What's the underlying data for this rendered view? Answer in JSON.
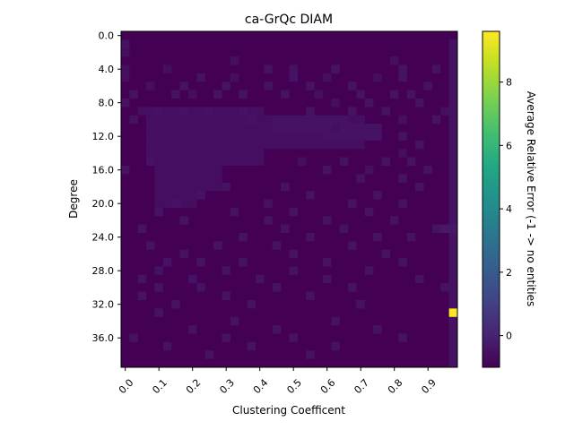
{
  "chart_data": {
    "type": "heatmap",
    "title": "ca-GrQc DIAM",
    "xlabel": "Clustering Coefficent",
    "ylabel": "Degree",
    "x_ticks": [
      "0.0",
      "0.1",
      "0.2",
      "0.3",
      "0.4",
      "0.5",
      "0.6",
      "0.7",
      "0.8",
      "0.9"
    ],
    "y_ticks": [
      "0.0",
      "4.0",
      "8.0",
      "12.0",
      "16.0",
      "20.0",
      "24.0",
      "28.0",
      "32.0",
      "36.0"
    ],
    "colorbar": {
      "label": "Average Relative Error (-1 -> no entities",
      "ticks": [
        "0",
        "2",
        "4",
        "6",
        "8"
      ],
      "range": [
        -1,
        9.6
      ],
      "colormap": "viridis"
    },
    "grid": {
      "rows": 40,
      "cols": 40,
      "row_start": 0,
      "row_step": 1,
      "col_start": 0.0,
      "col_step": 0.025
    },
    "default_value": -1,
    "cells": [
      [
        1,
        0,
        -0.5
      ],
      [
        1,
        39,
        -0.5
      ],
      [
        2,
        0,
        -0.6
      ],
      [
        2,
        39,
        -0.5
      ],
      [
        3,
        39,
        -0.5
      ],
      [
        3,
        32,
        -0.6
      ],
      [
        3,
        13,
        -0.6
      ],
      [
        4,
        0,
        -0.6
      ],
      [
        4,
        5,
        -0.6
      ],
      [
        4,
        17,
        -0.5
      ],
      [
        4,
        20,
        -0.5
      ],
      [
        4,
        25,
        -0.5
      ],
      [
        4,
        33,
        -0.5
      ],
      [
        4,
        37,
        -0.5
      ],
      [
        4,
        39,
        -0.5
      ],
      [
        5,
        0,
        -0.6
      ],
      [
        5,
        9,
        -0.5
      ],
      [
        5,
        13,
        -0.6
      ],
      [
        5,
        20,
        -0.5
      ],
      [
        5,
        24,
        -0.6
      ],
      [
        5,
        30,
        -0.6
      ],
      [
        5,
        33,
        -0.5
      ],
      [
        5,
        39,
        -0.5
      ],
      [
        6,
        3,
        -0.6
      ],
      [
        6,
        7,
        -0.5
      ],
      [
        6,
        12,
        -0.5
      ],
      [
        6,
        17,
        -0.5
      ],
      [
        6,
        22,
        -0.5
      ],
      [
        6,
        27,
        -0.5
      ],
      [
        6,
        36,
        -0.5
      ],
      [
        6,
        39,
        -0.5
      ],
      [
        7,
        1,
        -0.5
      ],
      [
        7,
        6,
        -0.5
      ],
      [
        7,
        8,
        -0.6
      ],
      [
        7,
        11,
        -0.5
      ],
      [
        7,
        14,
        -0.5
      ],
      [
        7,
        19,
        -0.5
      ],
      [
        7,
        23,
        -0.6
      ],
      [
        7,
        28,
        -0.5
      ],
      [
        7,
        32,
        -0.5
      ],
      [
        7,
        34,
        -0.5
      ],
      [
        7,
        39,
        -0.5
      ],
      [
        8,
        0,
        -0.5
      ],
      [
        8,
        25,
        -0.6
      ],
      [
        8,
        29,
        -0.5
      ],
      [
        8,
        35,
        -0.5
      ],
      [
        8,
        39,
        -0.5
      ],
      [
        9,
        2,
        -0.6
      ],
      [
        9,
        4,
        -0.5
      ],
      [
        9,
        7,
        -0.5
      ],
      [
        9,
        10,
        -0.5
      ],
      [
        9,
        14,
        -0.5
      ],
      [
        9,
        22,
        -0.5
      ],
      [
        9,
        27,
        -0.5
      ],
      [
        9,
        31,
        -0.5
      ],
      [
        9,
        38,
        -0.6
      ],
      [
        9,
        39,
        -0.5
      ],
      [
        10,
        1,
        -0.5
      ],
      [
        10,
        15,
        -0.5
      ],
      [
        10,
        21,
        -0.5
      ],
      [
        10,
        24,
        -0.5
      ],
      [
        10,
        28,
        -0.6
      ],
      [
        10,
        33,
        -0.6
      ],
      [
        10,
        37,
        -0.5
      ],
      [
        10,
        39,
        -0.5
      ],
      [
        11,
        25,
        -0.6
      ],
      [
        11,
        29,
        -0.5
      ],
      [
        11,
        39,
        -0.5
      ],
      [
        12,
        33,
        -0.5
      ],
      [
        12,
        39,
        -0.5
      ],
      [
        13,
        35,
        -0.5
      ],
      [
        13,
        39,
        -0.5
      ],
      [
        14,
        33,
        -0.6
      ],
      [
        14,
        39,
        -0.5
      ],
      [
        15,
        3,
        -0.5
      ],
      [
        15,
        21,
        -0.6
      ],
      [
        15,
        26,
        -0.5
      ],
      [
        15,
        31,
        -0.5
      ],
      [
        15,
        34,
        -0.5
      ],
      [
        15,
        39,
        -0.5
      ],
      [
        16,
        0,
        -0.5
      ],
      [
        16,
        24,
        -0.5
      ],
      [
        16,
        29,
        -0.6
      ],
      [
        16,
        36,
        -0.5
      ],
      [
        16,
        39,
        -0.5
      ],
      [
        17,
        28,
        -0.5
      ],
      [
        17,
        33,
        -0.5
      ],
      [
        17,
        39,
        -0.5
      ],
      [
        18,
        12,
        -0.5
      ],
      [
        18,
        19,
        -0.5
      ],
      [
        18,
        35,
        -0.5
      ],
      [
        18,
        39,
        -0.5
      ],
      [
        19,
        9,
        -0.5
      ],
      [
        19,
        22,
        -0.5
      ],
      [
        19,
        30,
        -0.5
      ],
      [
        19,
        39,
        -0.5
      ],
      [
        20,
        6,
        -0.5
      ],
      [
        20,
        17,
        -0.5
      ],
      [
        20,
        27,
        -0.5
      ],
      [
        20,
        33,
        -0.5
      ],
      [
        20,
        39,
        -0.5
      ],
      [
        21,
        4,
        -0.5
      ],
      [
        21,
        13,
        -0.5
      ],
      [
        21,
        20,
        -0.5
      ],
      [
        21,
        29,
        -0.5
      ],
      [
        21,
        39,
        -0.5
      ],
      [
        22,
        7,
        -0.5
      ],
      [
        22,
        17,
        -0.5
      ],
      [
        22,
        24,
        -0.5
      ],
      [
        22,
        32,
        -0.5
      ],
      [
        22,
        39,
        -0.5
      ],
      [
        23,
        2,
        -0.5
      ],
      [
        23,
        19,
        -0.5
      ],
      [
        23,
        26,
        -0.5
      ],
      [
        23,
        37,
        -0.5
      ],
      [
        23,
        38,
        -0.3
      ],
      [
        23,
        39,
        -0.3
      ],
      [
        24,
        14,
        -0.5
      ],
      [
        24,
        22,
        -0.5
      ],
      [
        24,
        30,
        -0.5
      ],
      [
        24,
        34,
        -0.5
      ],
      [
        24,
        39,
        -0.5
      ],
      [
        25,
        3,
        -0.5
      ],
      [
        25,
        11,
        -0.5
      ],
      [
        25,
        18,
        -0.5
      ],
      [
        25,
        27,
        -0.5
      ],
      [
        25,
        39,
        -0.5
      ],
      [
        26,
        7,
        -0.5
      ],
      [
        26,
        20,
        -0.5
      ],
      [
        26,
        31,
        -0.5
      ],
      [
        26,
        39,
        -0.5
      ],
      [
        27,
        5,
        -0.5
      ],
      [
        27,
        9,
        -0.5
      ],
      [
        27,
        14,
        -0.5
      ],
      [
        27,
        24,
        -0.5
      ],
      [
        27,
        33,
        -0.5
      ],
      [
        27,
        39,
        -0.5
      ],
      [
        28,
        4,
        -0.5
      ],
      [
        28,
        12,
        -0.5
      ],
      [
        28,
        20,
        -0.5
      ],
      [
        28,
        29,
        -0.5
      ],
      [
        28,
        39,
        -0.5
      ],
      [
        29,
        2,
        -0.5
      ],
      [
        29,
        8,
        -0.5
      ],
      [
        29,
        16,
        -0.5
      ],
      [
        29,
        24,
        -0.5
      ],
      [
        29,
        35,
        -0.5
      ],
      [
        29,
        39,
        -0.5
      ],
      [
        30,
        4,
        -0.5
      ],
      [
        30,
        9,
        -0.5
      ],
      [
        30,
        18,
        -0.5
      ],
      [
        30,
        27,
        -0.5
      ],
      [
        30,
        38,
        -0.5
      ],
      [
        30,
        39,
        -0.5
      ],
      [
        31,
        2,
        -0.5
      ],
      [
        31,
        12,
        -0.5
      ],
      [
        31,
        22,
        -0.5
      ],
      [
        31,
        39,
        -0.5
      ],
      [
        32,
        6,
        -0.5
      ],
      [
        32,
        15,
        -0.5
      ],
      [
        32,
        28,
        -0.5
      ],
      [
        32,
        39,
        -0.5
      ],
      [
        33,
        4,
        -0.5
      ],
      [
        33,
        39,
        9.6
      ],
      [
        34,
        13,
        -0.5
      ],
      [
        34,
        25,
        -0.5
      ],
      [
        34,
        39,
        -0.5
      ],
      [
        35,
        8,
        -0.5
      ],
      [
        35,
        18,
        -0.5
      ],
      [
        35,
        30,
        -0.5
      ],
      [
        35,
        39,
        -0.5
      ],
      [
        36,
        1,
        -0.5
      ],
      [
        36,
        12,
        -0.5
      ],
      [
        36,
        20,
        -0.5
      ],
      [
        36,
        33,
        -0.5
      ],
      [
        36,
        39,
        -0.5
      ],
      [
        37,
        5,
        -0.5
      ],
      [
        37,
        15,
        -0.5
      ],
      [
        37,
        25,
        -0.5
      ],
      [
        37,
        39,
        -0.5
      ],
      [
        38,
        10,
        -0.5
      ],
      [
        38,
        22,
        -0.5
      ],
      [
        38,
        39,
        -0.5
      ],
      [
        39,
        39,
        -0.5
      ]
    ],
    "blocks": [
      [
        9,
        15,
        3,
        16,
        -0.6
      ],
      [
        10,
        18,
        4,
        11,
        -0.6
      ],
      [
        12,
        20,
        4,
        8,
        -0.6
      ],
      [
        10,
        13,
        11,
        28,
        -0.6
      ],
      [
        11,
        12,
        24,
        30,
        -0.5
      ],
      [
        10,
        11,
        18,
        26,
        -0.5
      ]
    ]
  }
}
